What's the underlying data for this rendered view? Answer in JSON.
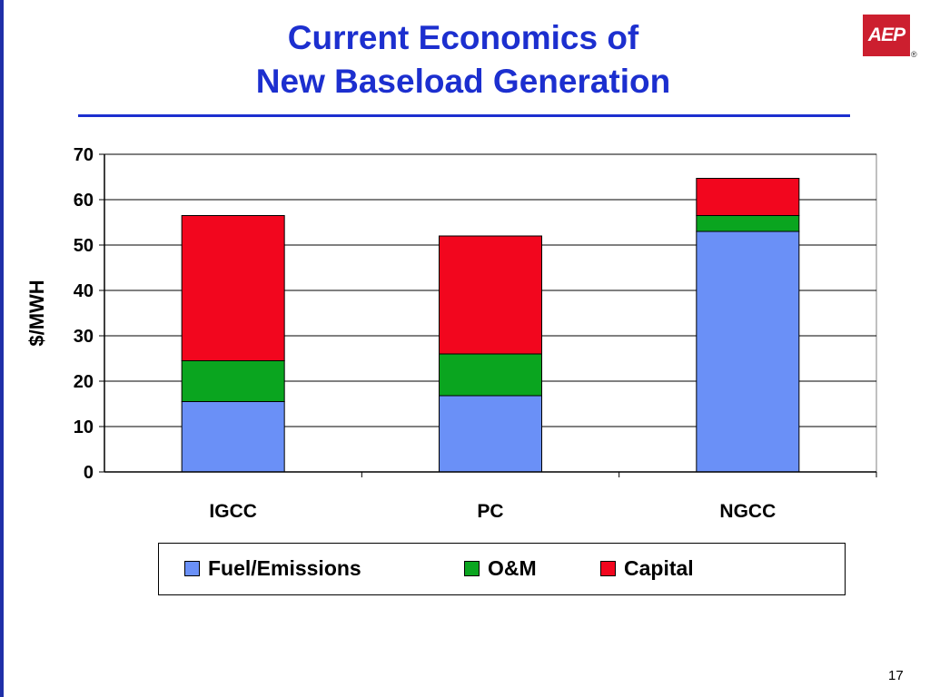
{
  "slide": {
    "title_line1": "Current Economics of",
    "title_line2": "New Baseload Generation",
    "logo_text": "AEP",
    "logo_reg": "®",
    "page_number": "17"
  },
  "colors": {
    "title": "#1c2fcf",
    "fuel": "#6a90f7",
    "om": "#0aa51f",
    "capital": "#f2061e",
    "logo": "#cc1f2f"
  },
  "chart_data": {
    "type": "bar",
    "stacked": true,
    "categories": [
      "IGCC",
      "PC",
      "NGCC"
    ],
    "series": [
      {
        "name": "Fuel/Emissions",
        "values": [
          15.5,
          16.8,
          53
        ]
      },
      {
        "name": "O&M",
        "values": [
          9,
          9.2,
          3.5
        ]
      },
      {
        "name": "Capital",
        "values": [
          32,
          26,
          8.2
        ]
      }
    ],
    "ylabel": "$/MWH",
    "ylim": [
      0,
      70
    ],
    "yticks": [
      "0",
      "10",
      "20",
      "30",
      "40",
      "50",
      "60",
      "70"
    ],
    "grid": true,
    "legend_position": "bottom"
  }
}
